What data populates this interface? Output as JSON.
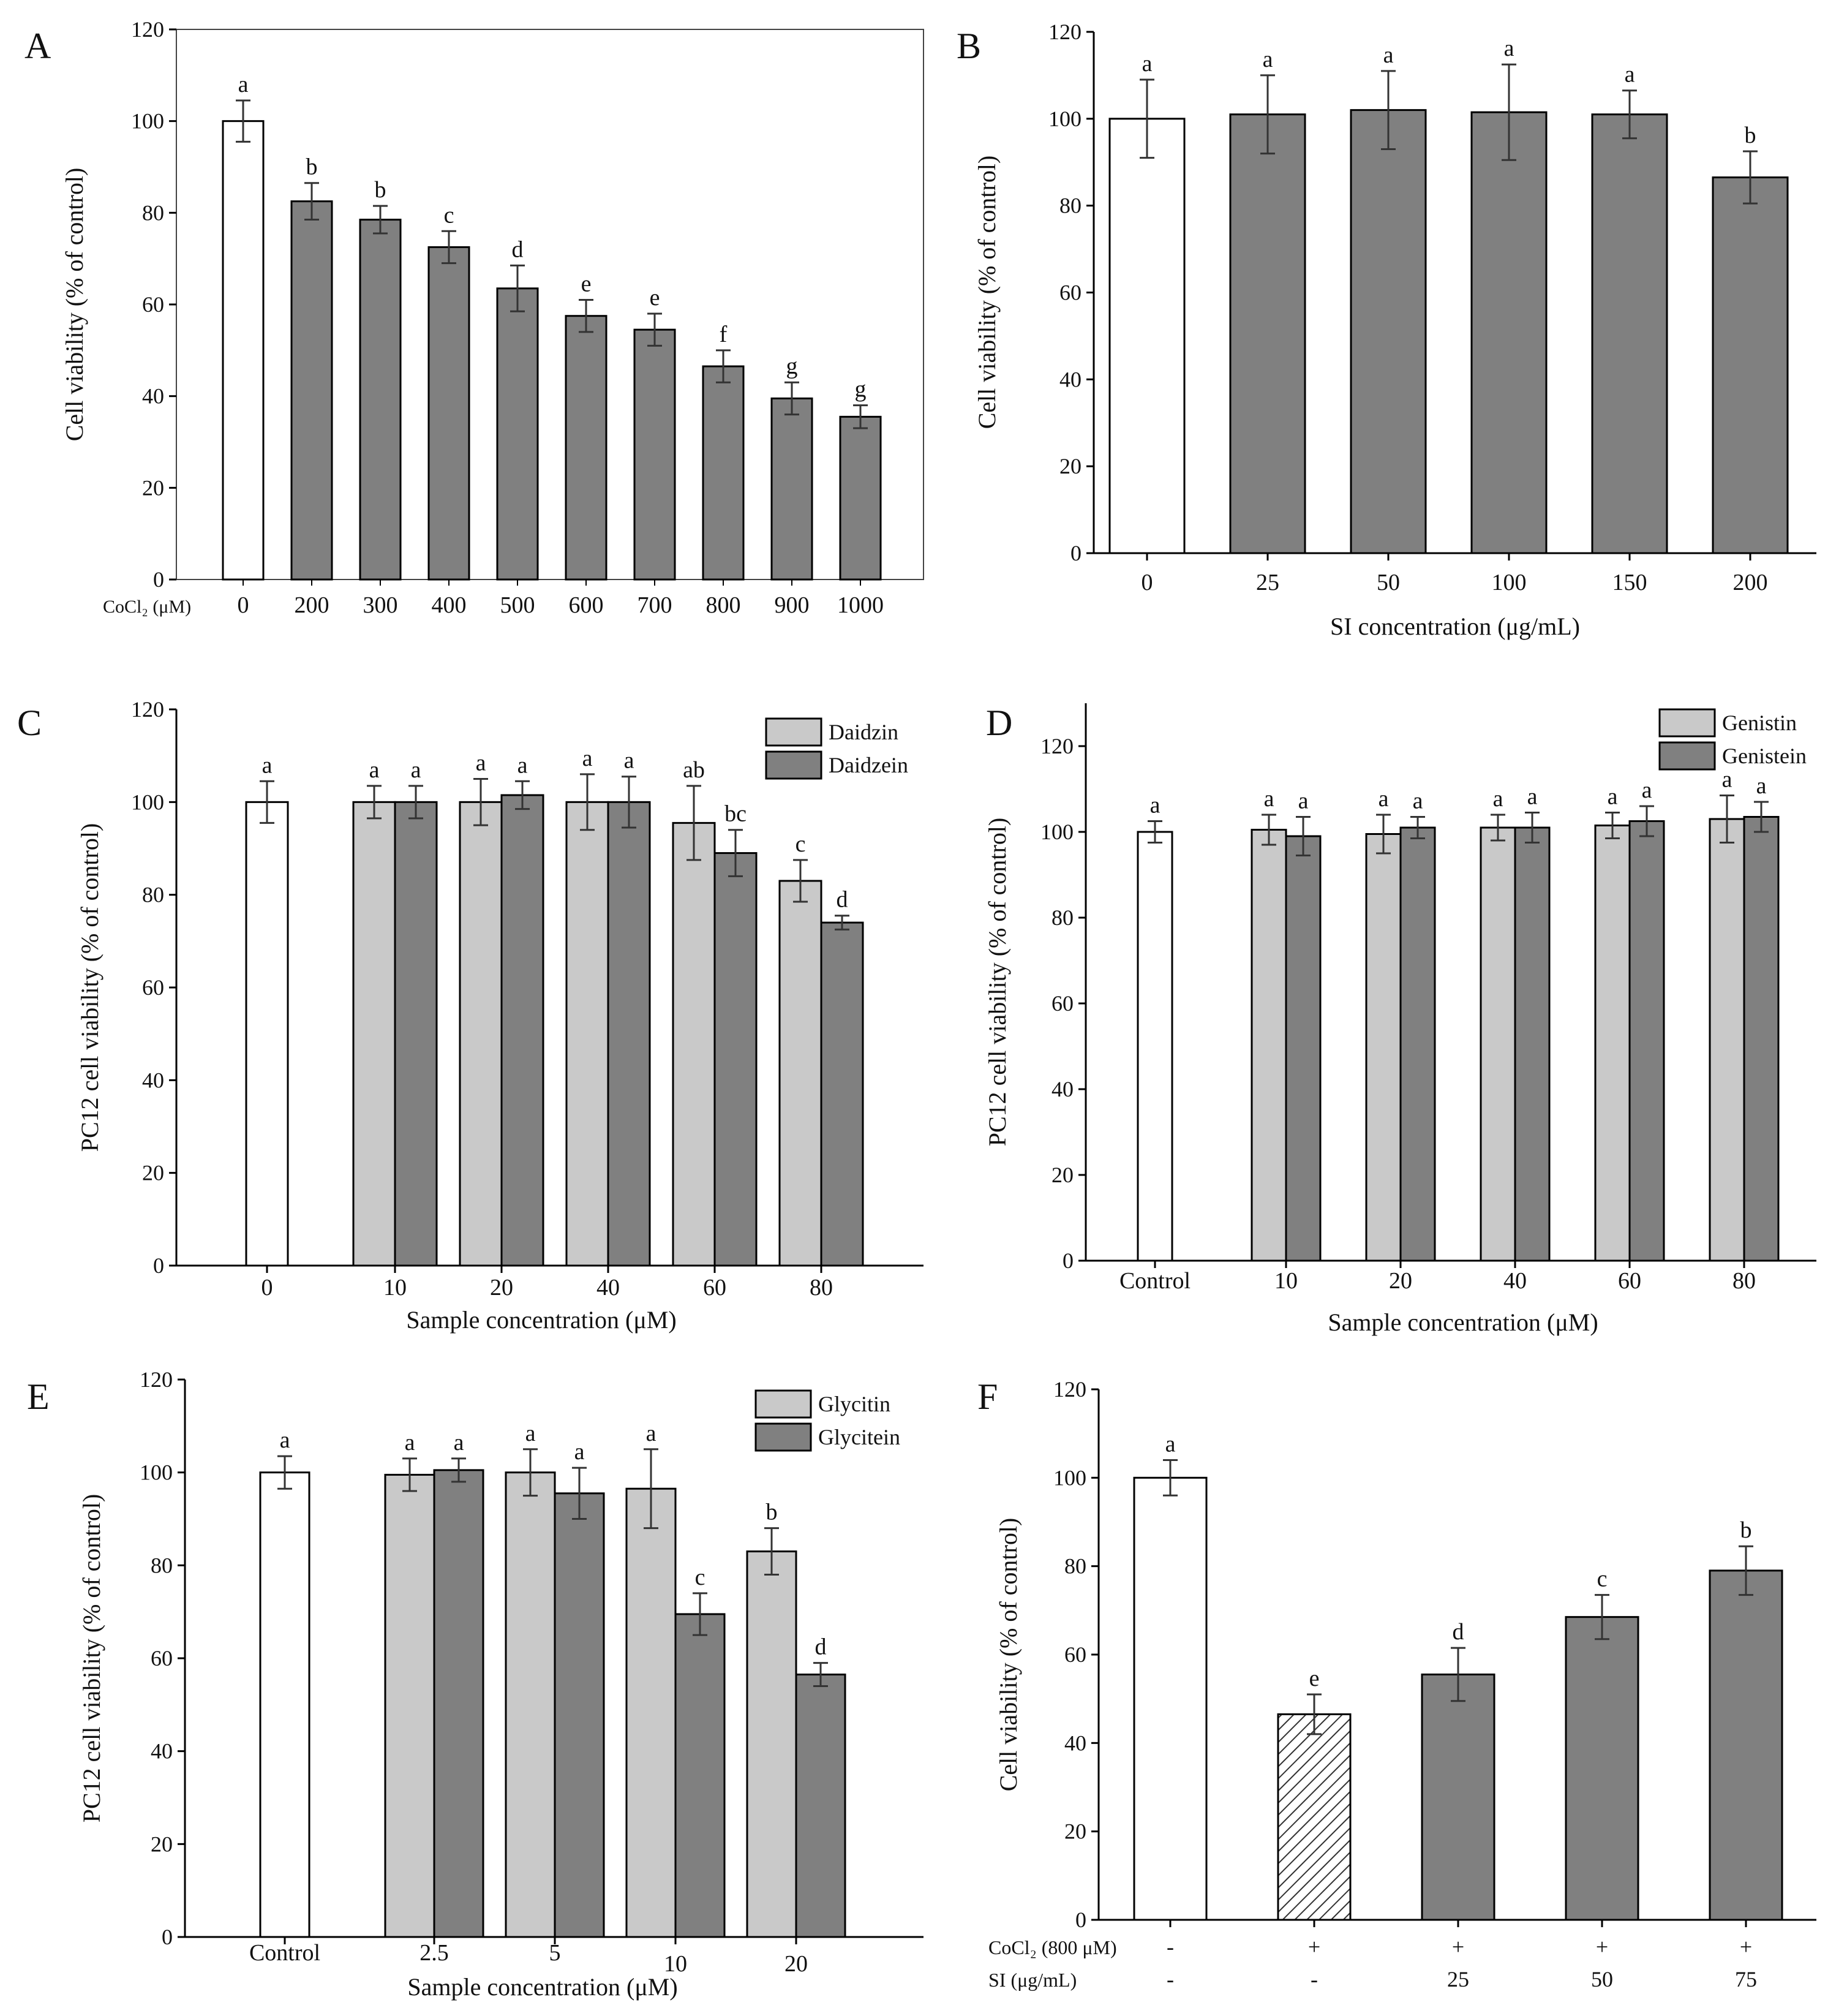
{
  "colors": {
    "control_fill": "#ffffff",
    "dark_fill": "#808080",
    "light_fill": "#c9c9c9",
    "stroke": "#000000",
    "error_bar": "#333333",
    "hatch": "#333333"
  },
  "chart_data": [
    {
      "panel": "A",
      "type": "bar",
      "ylabel": "Cell viability (% of control)",
      "xlabel": "",
      "axis_row_label": "CoCl₂ (μM)",
      "ylim": [
        0,
        120
      ],
      "yticks": [
        0,
        20,
        40,
        60,
        80,
        100,
        120
      ],
      "categories": [
        "0",
        "200",
        "300",
        "400",
        "500",
        "600",
        "700",
        "800",
        "900",
        "1000"
      ],
      "values": [
        100,
        82.5,
        78.5,
        72.5,
        63.5,
        57.5,
        54.5,
        46.5,
        39.5,
        35.5
      ],
      "errors": [
        4.5,
        4,
        3,
        3.5,
        5,
        3.5,
        3.5,
        3.5,
        3.5,
        2.5
      ],
      "letters": [
        "a",
        "b",
        "b",
        "c",
        "d",
        "e",
        "e",
        "f",
        "g",
        "g"
      ],
      "fills": [
        "control",
        "dark",
        "dark",
        "dark",
        "dark",
        "dark",
        "dark",
        "dark",
        "dark",
        "dark"
      ]
    },
    {
      "panel": "B",
      "type": "bar",
      "ylabel": "Cell viability (% of control)",
      "xlabel": "SI concentration (μg/mL)",
      "ylim": [
        0,
        120
      ],
      "yticks": [
        0,
        20,
        40,
        60,
        80,
        100,
        120
      ],
      "categories": [
        "0",
        "25",
        "50",
        "100",
        "150",
        "200"
      ],
      "values": [
        100,
        101,
        102,
        101.5,
        101,
        86.5
      ],
      "errors": [
        9,
        9,
        9,
        11,
        5.5,
        6
      ],
      "letters": [
        "a",
        "a",
        "a",
        "a",
        "a",
        "b"
      ],
      "fills": [
        "control",
        "dark",
        "dark",
        "dark",
        "dark",
        "dark"
      ]
    },
    {
      "panel": "C",
      "type": "bar",
      "ylabel": "PC12 cell viability (% of control)",
      "xlabel": "Sample concentration (μM)",
      "ylim": [
        0,
        120
      ],
      "yticks": [
        0,
        20,
        40,
        60,
        80,
        100,
        120
      ],
      "control": {
        "label": "0",
        "value": 100,
        "error": 4.5,
        "letter": "a"
      },
      "categories": [
        "10",
        "20",
        "40",
        "60",
        "80"
      ],
      "series": [
        {
          "name": "Daidzin",
          "fill": "light",
          "values": [
            100,
            100,
            100,
            95.5,
            83
          ],
          "errors": [
            3.5,
            5,
            6,
            8,
            4.5
          ],
          "letters": [
            "a",
            "a",
            "a",
            "ab",
            "c"
          ]
        },
        {
          "name": "Daidzein",
          "fill": "dark",
          "values": [
            100,
            101.5,
            100,
            89,
            74
          ],
          "errors": [
            3.5,
            3,
            5.5,
            5,
            1.5
          ],
          "letters": [
            "a",
            "a",
            "a",
            "bc",
            "d"
          ]
        }
      ]
    },
    {
      "panel": "D",
      "type": "bar",
      "ylabel": "PC12 cell viability (% of control)",
      "xlabel": "Sample concentration (μM)",
      "ylim": [
        0,
        130
      ],
      "yticks": [
        0,
        20,
        40,
        60,
        80,
        100,
        120
      ],
      "control": {
        "label": "Control",
        "value": 100,
        "error": 2.5,
        "letter": "a"
      },
      "categories": [
        "10",
        "20",
        "40",
        "60",
        "80"
      ],
      "series": [
        {
          "name": "Genistin",
          "fill": "light",
          "values": [
            100.5,
            99.5,
            101,
            101.5,
            103
          ],
          "errors": [
            3.5,
            4.5,
            3,
            3,
            5.5
          ],
          "letters": [
            "a",
            "a",
            "a",
            "a",
            "a"
          ]
        },
        {
          "name": "Genistein",
          "fill": "dark",
          "values": [
            99,
            101,
            101,
            102.5,
            103.5
          ],
          "errors": [
            4.5,
            2.5,
            3.5,
            3.5,
            3.5
          ],
          "letters": [
            "a",
            "a",
            "a",
            "a",
            "a"
          ]
        }
      ]
    },
    {
      "panel": "E",
      "type": "bar",
      "ylabel": "PC12 cell viability (% of control)",
      "xlabel": "Sample concentration (μM)",
      "ylim": [
        0,
        120
      ],
      "yticks": [
        0,
        20,
        40,
        60,
        80,
        100,
        120
      ],
      "control": {
        "label": "Control",
        "value": 100,
        "error": 3.5,
        "letter": "a"
      },
      "categories": [
        "2.5",
        "5",
        "10",
        "20"
      ],
      "series": [
        {
          "name": "Glycitin",
          "fill": "light",
          "values": [
            99.5,
            100,
            96.5,
            83
          ],
          "errors": [
            3.5,
            5,
            8.5,
            5
          ],
          "letters": [
            "a",
            "a",
            "a",
            "b"
          ]
        },
        {
          "name": "Glycitein",
          "fill": "dark",
          "values": [
            100.5,
            95.5,
            69.5,
            56.5
          ],
          "errors": [
            2.5,
            5.5,
            4.5,
            2.5
          ],
          "letters": [
            "a",
            "a",
            "c",
            "d"
          ]
        }
      ]
    },
    {
      "panel": "F",
      "type": "bar",
      "ylabel": "Cell viability (% of control)",
      "ylim": [
        0,
        120
      ],
      "yticks": [
        0,
        20,
        40,
        60,
        80,
        100,
        120
      ],
      "row_labels": [
        "CoCl₂ (800 μM)",
        "SI (μg/mL)"
      ],
      "rows": [
        [
          "-",
          "+",
          "+",
          "+",
          "+"
        ],
        [
          "-",
          "-",
          "25",
          "50",
          "75"
        ]
      ],
      "values": [
        100,
        46.5,
        55.5,
        68.5,
        79
      ],
      "errors": [
        4,
        4.5,
        6,
        5,
        5.5
      ],
      "letters": [
        "a",
        "e",
        "d",
        "c",
        "b"
      ],
      "fills": [
        "control",
        "hatch",
        "dark",
        "dark",
        "dark"
      ]
    }
  ]
}
